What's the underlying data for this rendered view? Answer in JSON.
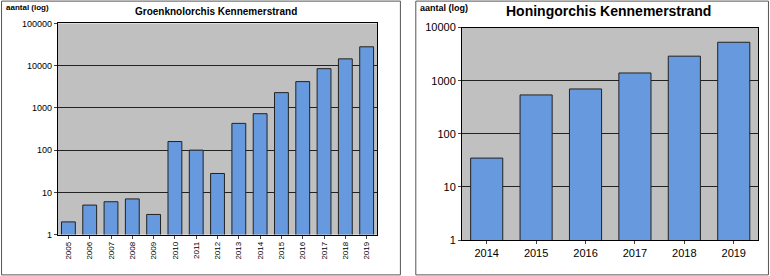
{
  "chart_data": [
    {
      "type": "bar",
      "title": "Groenknolorchis Kennemerstrand",
      "y_label": "aantal (log)",
      "categories": [
        "2005",
        "2006",
        "2007",
        "2008",
        "2009",
        "2010",
        "2011",
        "2012",
        "2013",
        "2014",
        "2015",
        "2016",
        "2017",
        "2018",
        "2019"
      ],
      "values": [
        2,
        5,
        6,
        7,
        3,
        160,
        100,
        28,
        430,
        730,
        2300,
        4200,
        8500,
        14500,
        28000
      ],
      "color": "#6699dd",
      "log": "y",
      "ylim": [
        1,
        100000
      ],
      "yticks": [
        1,
        10,
        100,
        1000,
        10000,
        100000
      ],
      "grid": true
    },
    {
      "type": "bar",
      "title": "Honingorchis Kennemerstrand",
      "y_label": "aantal (log)",
      "categories": [
        "2014",
        "2015",
        "2016",
        "2017",
        "2018",
        "2019"
      ],
      "values": [
        35,
        540,
        700,
        1400,
        2900,
        5300
      ],
      "color": "#6699dd",
      "log": "y",
      "ylim": [
        1,
        10000
      ],
      "yticks": [
        1,
        10,
        100,
        1000,
        10000
      ],
      "grid": true
    }
  ]
}
